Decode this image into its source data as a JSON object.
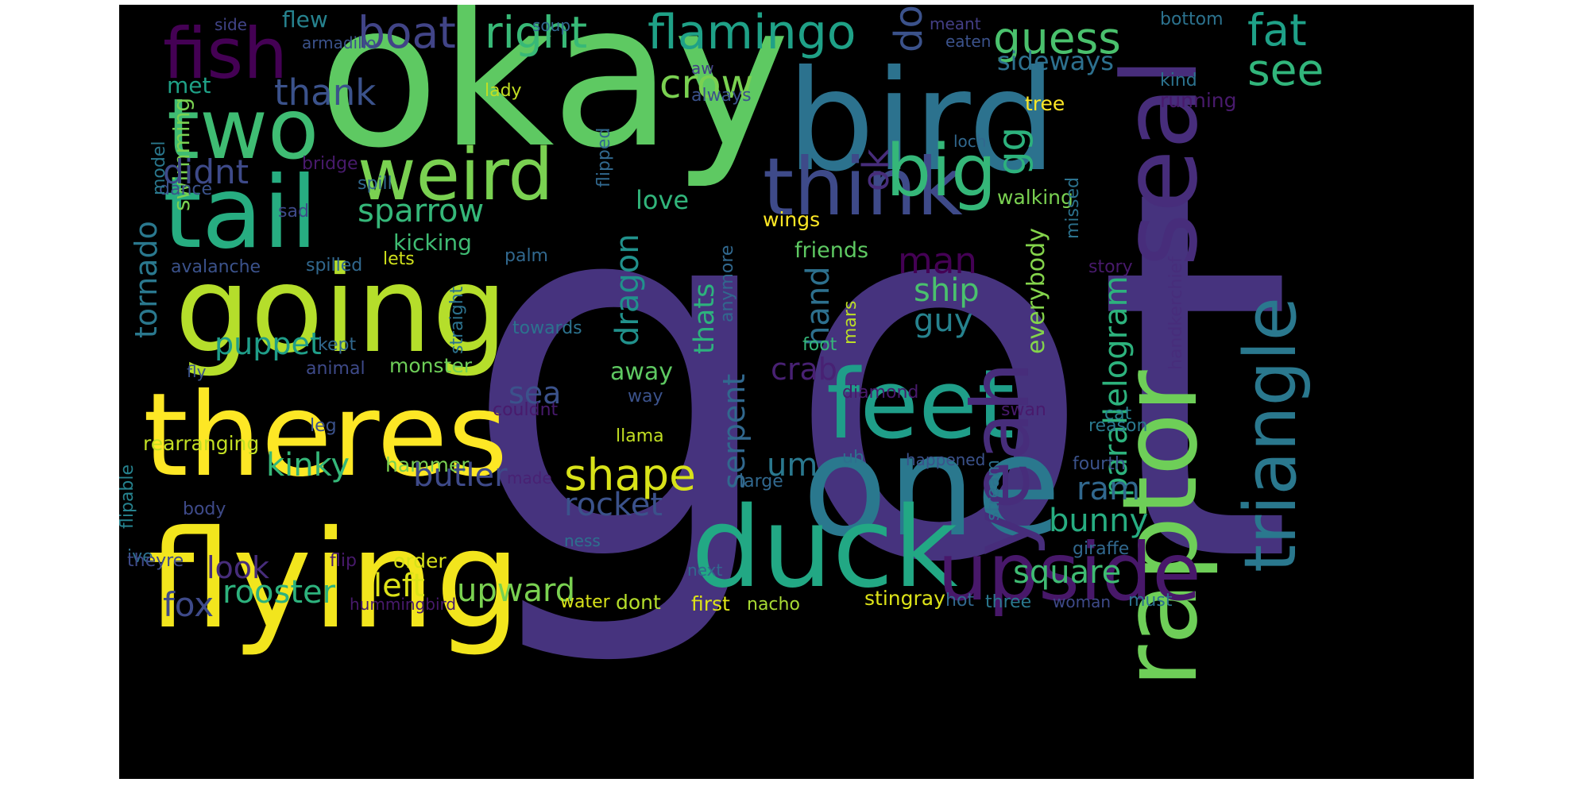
{
  "title": "",
  "colors": {
    "background": "#000000",
    "page": "#ffffff"
  },
  "words": [
    {
      "text": "got",
      "color": "#46337e"
    },
    {
      "text": "okay",
      "color": "#5ec962"
    },
    {
      "text": "bird",
      "color": "#2c728e"
    },
    {
      "text": "flying",
      "color": "#f2e51d"
    },
    {
      "text": "one",
      "color": "#2a788e"
    },
    {
      "text": "theres",
      "color": "#fde725"
    },
    {
      "text": "going",
      "color": "#b5de2b"
    },
    {
      "text": "tail",
      "color": "#27ad81"
    },
    {
      "text": "raptor",
      "color": "#6ece58"
    },
    {
      "text": "seal",
      "color": "#472d7b"
    },
    {
      "text": "duck",
      "color": "#22a884"
    },
    {
      "text": "feet",
      "color": "#1f9e89"
    },
    {
      "text": "two",
      "color": "#3fbc73"
    },
    {
      "text": "fish",
      "color": "#440154"
    },
    {
      "text": "triangle",
      "color": "#2a788e"
    },
    {
      "text": "upside",
      "color": "#48186a"
    },
    {
      "text": "yeah",
      "color": "#472d7b"
    },
    {
      "text": "think",
      "color": "#3e4a89"
    },
    {
      "text": "weird",
      "color": "#7ad151"
    },
    {
      "text": "big",
      "color": "#35b779"
    },
    {
      "text": "flamingo",
      "color": "#1fa187"
    },
    {
      "text": "boat",
      "color": "#414487"
    },
    {
      "text": "right",
      "color": "#38b977"
    },
    {
      "text": "guess",
      "color": "#4ac16d"
    },
    {
      "text": "fat",
      "color": "#1fa188"
    },
    {
      "text": "see",
      "color": "#31b57b"
    },
    {
      "text": "flew",
      "color": "#26828e"
    },
    {
      "text": "soup",
      "color": "#31688e"
    },
    {
      "text": "side",
      "color": "#414487"
    },
    {
      "text": "armadillo",
      "color": "#3b528b"
    },
    {
      "text": "meant",
      "color": "#433e85"
    },
    {
      "text": "eaten",
      "color": "#3b528b"
    },
    {
      "text": "bottom",
      "color": "#2c728e"
    },
    {
      "text": "dog",
      "color": "#3b528b"
    },
    {
      "text": "crow",
      "color": "#7ad151"
    },
    {
      "text": "thank",
      "color": "#3b528b"
    },
    {
      "text": "met",
      "color": "#1fa187"
    },
    {
      "text": "swimming",
      "color": "#7ad151"
    },
    {
      "text": "didnt",
      "color": "#3e4a89"
    },
    {
      "text": "ok",
      "color": "#472d7b"
    },
    {
      "text": "sideways",
      "color": "#2d708e"
    },
    {
      "text": "kind",
      "color": "#2c728e"
    },
    {
      "text": "running",
      "color": "#481a6c"
    },
    {
      "text": "tree",
      "color": "#fde725"
    },
    {
      "text": "lady",
      "color": "#c2df23"
    },
    {
      "text": "always",
      "color": "#3b528b"
    },
    {
      "text": "flipped",
      "color": "#31688e"
    },
    {
      "text": "aw",
      "color": "#424086"
    },
    {
      "text": "loch",
      "color": "#31688e"
    },
    {
      "text": "sparrow",
      "color": "#35b779"
    },
    {
      "text": "love",
      "color": "#31b57b"
    },
    {
      "text": "bridge",
      "color": "#481a6c"
    },
    {
      "text": "spill",
      "color": "#31688e"
    },
    {
      "text": "dance",
      "color": "#3b528b"
    },
    {
      "text": "sad",
      "color": "#3e4a89"
    },
    {
      "text": "model",
      "color": "#2a788e"
    },
    {
      "text": "walking",
      "color": "#7ad151"
    },
    {
      "text": "gg",
      "color": "#2db27d"
    },
    {
      "text": "parallelogram",
      "color": "#2db27d"
    },
    {
      "text": "missed",
      "color": "#2c728e"
    },
    {
      "text": "tornado",
      "color": "#2a788e"
    },
    {
      "text": "wings",
      "color": "#fde725"
    },
    {
      "text": "kicking",
      "color": "#3fbc73"
    },
    {
      "text": "friends",
      "color": "#5ec962"
    },
    {
      "text": "lets",
      "color": "#d0e11c"
    },
    {
      "text": "avalanche",
      "color": "#3b528b"
    },
    {
      "text": "spilled",
      "color": "#31688e"
    },
    {
      "text": "palm",
      "color": "#31688e"
    },
    {
      "text": "story",
      "color": "#481a6c"
    },
    {
      "text": "handkerchief",
      "color": "#472d7b"
    },
    {
      "text": "dragon",
      "color": "#21918c"
    },
    {
      "text": "man",
      "color": "#440154"
    },
    {
      "text": "ship",
      "color": "#4ac16d"
    },
    {
      "text": "guy",
      "color": "#26828e"
    },
    {
      "text": "hand",
      "color": "#2d708e"
    },
    {
      "text": "thats",
      "color": "#2db27d"
    },
    {
      "text": "anymore",
      "color": "#31688e"
    },
    {
      "text": "everybody",
      "color": "#84d44b"
    },
    {
      "text": "puppet",
      "color": "#1f9e89"
    },
    {
      "text": "towards",
      "color": "#2c728e"
    },
    {
      "text": "straight",
      "color": "#2c728e"
    },
    {
      "text": "mars",
      "color": "#bddf26"
    },
    {
      "text": "kept",
      "color": "#31688e"
    },
    {
      "text": "foot",
      "color": "#35b779"
    },
    {
      "text": "crab",
      "color": "#482173"
    },
    {
      "text": "animal",
      "color": "#3e4a89"
    },
    {
      "text": "monster",
      "color": "#6ece58"
    },
    {
      "text": "away",
      "color": "#5ec962"
    },
    {
      "text": "fly",
      "color": "#3b528b"
    },
    {
      "text": "sea",
      "color": "#3b528b"
    },
    {
      "text": "diamond",
      "color": "#481a6c"
    },
    {
      "text": "way",
      "color": "#3b528b"
    },
    {
      "text": "swan",
      "color": "#481a6c"
    },
    {
      "text": "cat",
      "color": "#26828e"
    },
    {
      "text": "couldnt",
      "color": "#481a6c"
    },
    {
      "text": "reason",
      "color": "#2a788e"
    },
    {
      "text": "serpent",
      "color": "#31688e"
    },
    {
      "text": "leg",
      "color": "#3b528b"
    },
    {
      "text": "kinky",
      "color": "#35b779"
    },
    {
      "text": "rearranging",
      "color": "#c2df23"
    },
    {
      "text": "hammer",
      "color": "#7ad151"
    },
    {
      "text": "llama",
      "color": "#c2df23"
    },
    {
      "text": "butler",
      "color": "#3e4a89"
    },
    {
      "text": "shape",
      "color": "#d8e219"
    },
    {
      "text": "um",
      "color": "#2a788e"
    },
    {
      "text": "uh",
      "color": "#2d708e"
    },
    {
      "text": "happened",
      "color": "#3b528b"
    },
    {
      "text": "ram",
      "color": "#31688e"
    },
    {
      "text": "fourth",
      "color": "#3b528b"
    },
    {
      "text": "flipable",
      "color": "#26828e"
    },
    {
      "text": "made",
      "color": "#482173"
    },
    {
      "text": "stream",
      "color": "#2d708e"
    },
    {
      "text": "large",
      "color": "#31688e"
    },
    {
      "text": "rocket",
      "color": "#3b528b"
    },
    {
      "text": "bunny",
      "color": "#27ad81"
    },
    {
      "text": "body",
      "color": "#3e4a89"
    },
    {
      "text": "ive",
      "color": "#2d708e"
    },
    {
      "text": "ness",
      "color": "#2d708e"
    },
    {
      "text": "square",
      "color": "#3fbc73"
    },
    {
      "text": "giraffe",
      "color": "#31688e"
    },
    {
      "text": "look",
      "color": "#472d7b"
    },
    {
      "text": "theyre",
      "color": "#3e4a89"
    },
    {
      "text": "flip",
      "color": "#481a6c"
    },
    {
      "text": "order",
      "color": "#d8e219"
    },
    {
      "text": "next",
      "color": "#31688e"
    },
    {
      "text": "rooster",
      "color": "#2db27d"
    },
    {
      "text": "left",
      "color": "#dde318"
    },
    {
      "text": "upward",
      "color": "#7ad151"
    },
    {
      "text": "fox",
      "color": "#3e4a89"
    },
    {
      "text": "hummingbird",
      "color": "#481a6c"
    },
    {
      "text": "water",
      "color": "#d8e219"
    },
    {
      "text": "dont",
      "color": "#b5de2b"
    },
    {
      "text": "first",
      "color": "#dde318"
    },
    {
      "text": "nacho",
      "color": "#a8db34"
    },
    {
      "text": "stingray",
      "color": "#dde318"
    },
    {
      "text": "hot",
      "color": "#31688e"
    },
    {
      "text": "three",
      "color": "#2a788e"
    },
    {
      "text": "woman",
      "color": "#3e4a89"
    },
    {
      "text": "must",
      "color": "#2c728e"
    }
  ]
}
